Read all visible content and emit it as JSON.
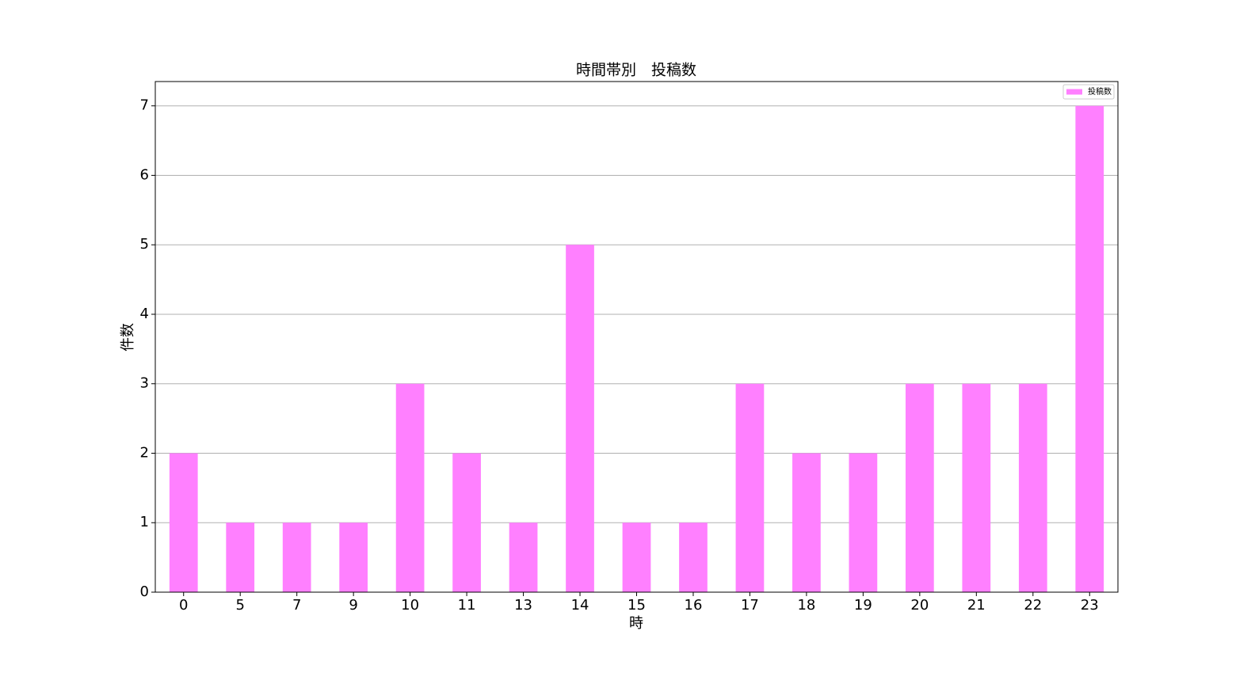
{
  "chart_data": {
    "type": "bar",
    "title": "時間帯別　投稿数",
    "x_label": "時",
    "y_label": "件数",
    "categories": [
      "0",
      "5",
      "7",
      "9",
      "10",
      "11",
      "13",
      "14",
      "15",
      "16",
      "17",
      "18",
      "19",
      "20",
      "21",
      "22",
      "23"
    ],
    "series": [
      {
        "name": "投稿数",
        "color": "#ff80ff",
        "values": [
          2,
          1,
          1,
          1,
          3,
          2,
          1,
          5,
          1,
          1,
          3,
          2,
          2,
          3,
          3,
          3,
          7
        ]
      }
    ],
    "ylim": [
      0,
      7.35
    ],
    "yticks": [
      0,
      1,
      2,
      3,
      4,
      5,
      6,
      7
    ],
    "grid": true,
    "legend": "upper right"
  }
}
